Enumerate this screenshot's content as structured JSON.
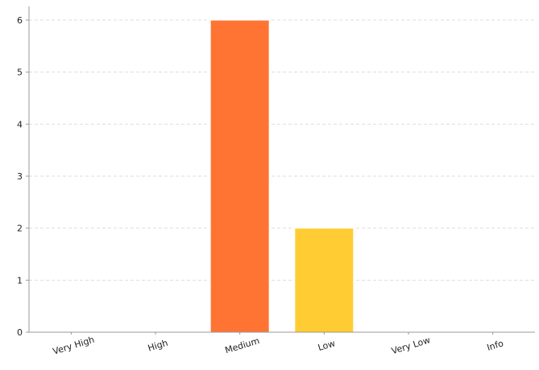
{
  "chart_data": {
    "type": "bar",
    "categories": [
      "Very High",
      "High",
      "Medium",
      "Low",
      "Very Low",
      "Info"
    ],
    "values": [
      0,
      0,
      6,
      2,
      0,
      0
    ],
    "colors": [
      "#ff7433",
      "#ff7433",
      "#ff7433",
      "#ffcc33",
      "#ff7433",
      "#ff7433"
    ],
    "yticks": [
      "0",
      "1",
      "2",
      "3",
      "4",
      "5",
      "6"
    ],
    "ylim": [
      0,
      6
    ],
    "title": "",
    "xlabel": "",
    "ylabel": "",
    "grid": true,
    "grid_color": "#dddddd",
    "axis_color": "#999999"
  }
}
